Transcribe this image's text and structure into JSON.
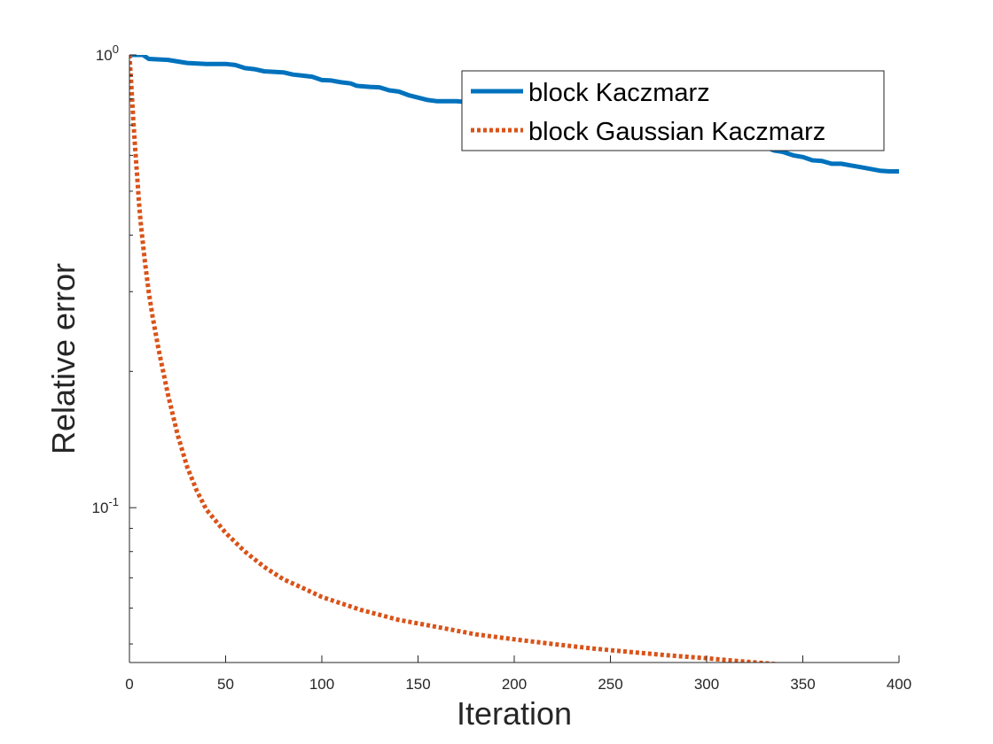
{
  "chart_data": {
    "type": "line",
    "title": "",
    "xlabel": "Iteration",
    "ylabel": "Relative error",
    "xlim": [
      0,
      400
    ],
    "ylim": [
      0.0455,
      1.0
    ],
    "yscale": "log",
    "xticks": [
      0,
      50,
      100,
      150,
      200,
      250,
      300,
      350,
      400
    ],
    "xtick_labels": [
      "0",
      "50",
      "100",
      "150",
      "200",
      "250",
      "300",
      "350",
      "400"
    ],
    "yticks": [
      0.1,
      1
    ],
    "ytick_labels": [
      {
        "base": "10",
        "exp": "-1"
      },
      {
        "base": "10",
        "exp": "0"
      }
    ],
    "grid": false,
    "legend_position": "top-right",
    "series": [
      {
        "name": "block Kaczmarz",
        "color": "#0072BD",
        "style": "solid",
        "x": [
          0,
          7,
          10,
          20,
          30,
          40,
          50,
          55,
          60,
          65,
          70,
          80,
          85,
          90,
          95,
          100,
          105,
          110,
          115,
          118,
          120,
          125,
          130,
          135,
          140,
          145,
          150,
          155,
          160,
          170,
          200,
          250,
          280,
          300,
          305,
          310,
          315,
          320,
          325,
          330,
          335,
          340,
          345,
          350,
          355,
          360,
          365,
          370,
          375,
          380,
          385,
          390,
          395,
          400
        ],
        "y": [
          1.0,
          1.0,
          0.98,
          0.975,
          0.96,
          0.955,
          0.955,
          0.95,
          0.935,
          0.93,
          0.92,
          0.915,
          0.905,
          0.9,
          0.895,
          0.88,
          0.878,
          0.87,
          0.865,
          0.855,
          0.853,
          0.85,
          0.848,
          0.835,
          0.83,
          0.815,
          0.805,
          0.795,
          0.79,
          0.79,
          0.77,
          0.74,
          0.69,
          0.665,
          0.66,
          0.65,
          0.64,
          0.635,
          0.63,
          0.628,
          0.615,
          0.61,
          0.6,
          0.595,
          0.585,
          0.583,
          0.575,
          0.575,
          0.57,
          0.565,
          0.56,
          0.555,
          0.553,
          0.553
        ]
      },
      {
        "name": "block Gaussian Kaczmarz",
        "color": "#D95319",
        "style": "dotted",
        "x": [
          0,
          1,
          2,
          3,
          4,
          5,
          6,
          8,
          10,
          12,
          15,
          20,
          25,
          30,
          35,
          40,
          50,
          60,
          70,
          80,
          90,
          100,
          120,
          140,
          160,
          180,
          200,
          220,
          240,
          260,
          280,
          300,
          320,
          340,
          360,
          380,
          400
        ],
        "y": [
          1.0,
          0.85,
          0.72,
          0.62,
          0.54,
          0.47,
          0.42,
          0.35,
          0.3,
          0.265,
          0.225,
          0.178,
          0.145,
          0.123,
          0.109,
          0.099,
          0.088,
          0.08,
          0.074,
          0.0695,
          0.0665,
          0.0635,
          0.0595,
          0.0565,
          0.0545,
          0.0525,
          0.0512,
          0.05,
          0.0489,
          0.048,
          0.0472,
          0.0465,
          0.0457,
          0.045,
          0.0443,
          0.0435,
          0.0427
        ]
      }
    ]
  }
}
